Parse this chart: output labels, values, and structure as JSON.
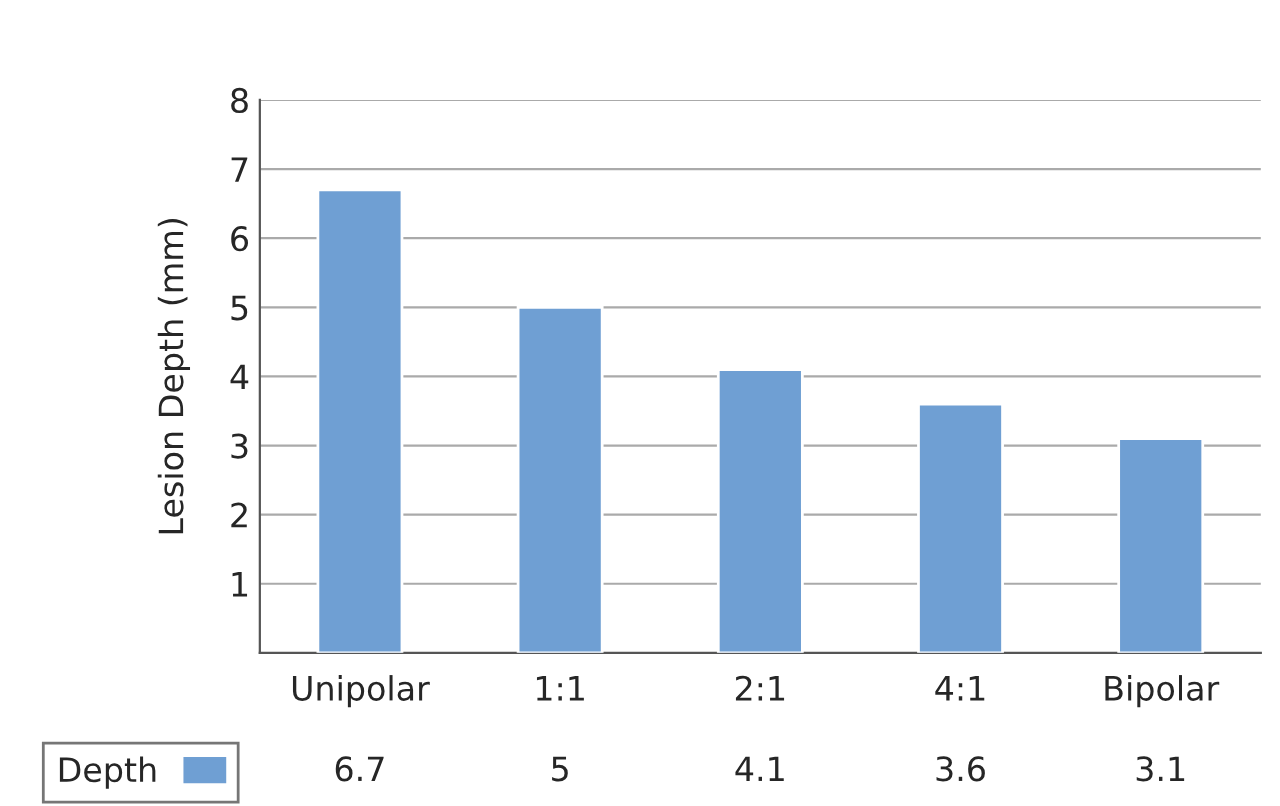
{
  "chart_data": {
    "type": "bar",
    "ylabel": "Lesion Depth (mm)",
    "categories": [
      "Unipolar",
      "1:1",
      "2:1",
      "4:1",
      "Bipolar"
    ],
    "series": [
      {
        "name": "Depth",
        "color": "#6f9fd3",
        "values": [
          6.7,
          5,
          4.1,
          3.6,
          3.1
        ]
      }
    ],
    "ylim": [
      0,
      8
    ],
    "yticks": [
      1,
      2,
      3,
      4,
      5,
      6,
      7,
      8
    ],
    "grid": "y",
    "legend": "bottom left",
    "data_labels": true
  }
}
